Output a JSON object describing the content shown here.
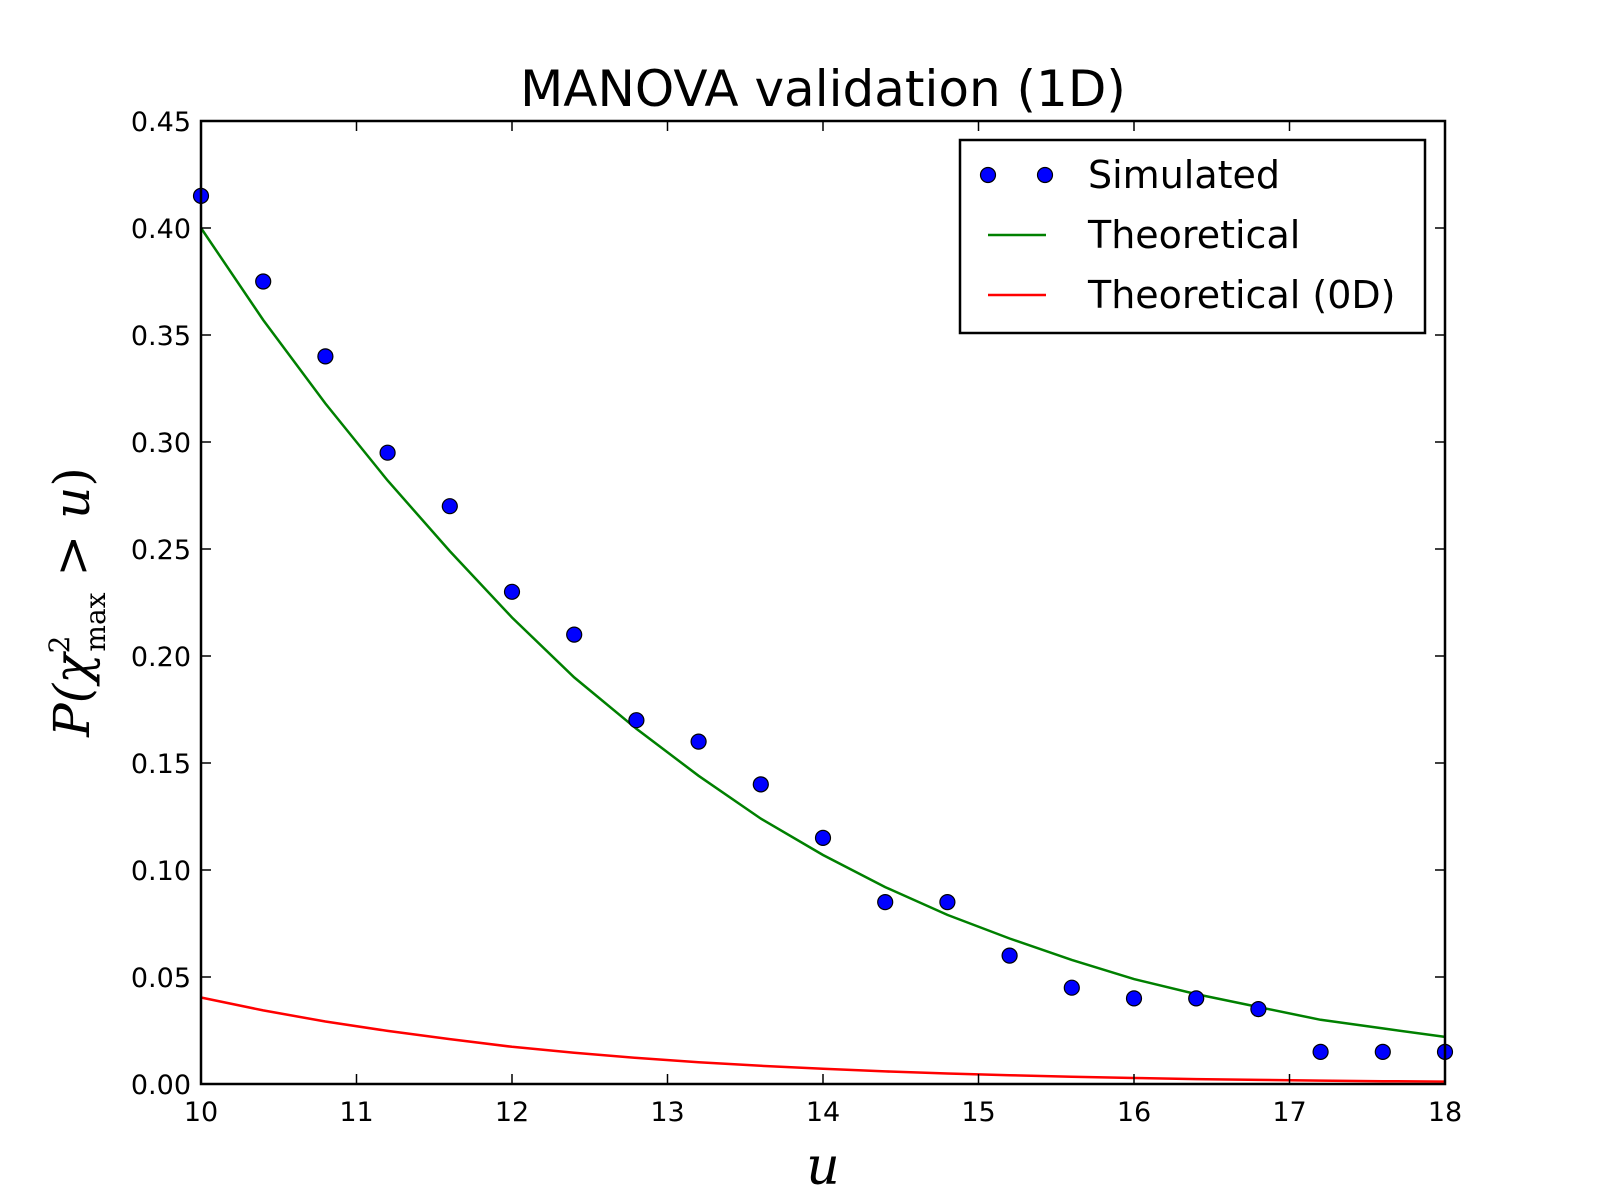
{
  "chart_data": {
    "type": "line",
    "title": "MANOVA validation (1D)",
    "xlabel": "u",
    "ylabel": {
      "prefix": "P(",
      "symbol": "χ",
      "superscript": "2",
      "subscript": "max",
      "relation": " > ",
      "variable": "u",
      "suffix": ")"
    },
    "xlim": [
      10,
      18
    ],
    "ylim": [
      0,
      0.45
    ],
    "xticks": [
      10,
      11,
      12,
      13,
      14,
      15,
      16,
      17,
      18
    ],
    "xtick_labels": [
      "10",
      "11",
      "12",
      "13",
      "14",
      "15",
      "16",
      "17",
      "18"
    ],
    "yticks": [
      0,
      0.05,
      0.1,
      0.15,
      0.2,
      0.25,
      0.3,
      0.35,
      0.4,
      0.45
    ],
    "ytick_labels": [
      "0.00",
      "0.05",
      "0.10",
      "0.15",
      "0.20",
      "0.25",
      "0.30",
      "0.35",
      "0.40",
      "0.45"
    ],
    "grid": false,
    "legend_position": "top-right",
    "series": [
      {
        "name": "Simulated",
        "kind": "markers",
        "color": "#0000ff",
        "x": [
          10.0,
          10.4,
          10.8,
          11.2,
          11.6,
          12.0,
          12.4,
          12.8,
          13.2,
          13.6,
          14.0,
          14.4,
          14.8,
          15.2,
          15.6,
          16.0,
          16.4,
          16.8,
          17.2,
          17.6,
          18.0
        ],
        "y": [
          0.415,
          0.375,
          0.34,
          0.295,
          0.27,
          0.23,
          0.21,
          0.17,
          0.16,
          0.14,
          0.115,
          0.085,
          0.085,
          0.06,
          0.045,
          0.04,
          0.04,
          0.035,
          0.015,
          0.015,
          0.015
        ]
      },
      {
        "name": "Theoretical",
        "kind": "line",
        "color": "#008000",
        "x": [
          10.0,
          10.4,
          10.8,
          11.2,
          11.6,
          12.0,
          12.4,
          12.8,
          13.2,
          13.6,
          14.0,
          14.4,
          14.8,
          15.2,
          15.6,
          16.0,
          16.4,
          16.8,
          17.2,
          17.6,
          18.0
        ],
        "y": [
          0.4,
          0.357,
          0.318,
          0.282,
          0.249,
          0.218,
          0.19,
          0.166,
          0.144,
          0.124,
          0.107,
          0.092,
          0.079,
          0.068,
          0.058,
          0.049,
          0.042,
          0.036,
          0.03,
          0.026,
          0.022
        ]
      },
      {
        "name": "Theoretical (0D)",
        "kind": "line",
        "color": "#ff0000",
        "x": [
          10.0,
          10.4,
          10.8,
          11.2,
          11.6,
          12.0,
          12.4,
          12.8,
          13.2,
          13.6,
          14.0,
          14.4,
          14.8,
          15.2,
          15.6,
          16.0,
          16.4,
          16.8,
          17.2,
          17.6,
          18.0
        ],
        "y": [
          0.0404,
          0.0344,
          0.0292,
          0.0248,
          0.021,
          0.0174,
          0.0146,
          0.0122,
          0.0102,
          0.0085,
          0.0071,
          0.0059,
          0.0049,
          0.0041,
          0.0034,
          0.0028,
          0.0023,
          0.0019,
          0.0016,
          0.0013,
          0.0011
        ]
      }
    ]
  }
}
